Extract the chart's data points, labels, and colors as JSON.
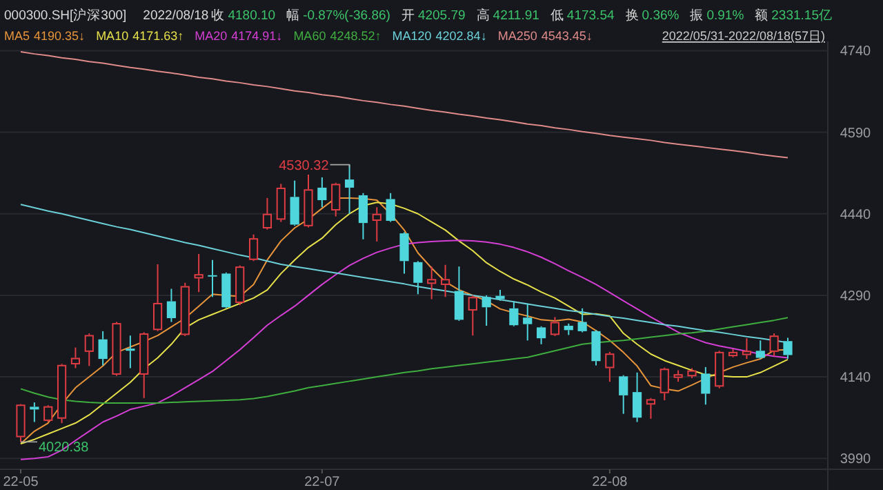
{
  "chart_data": {
    "type": "candlestick",
    "title": "000300.SH[沪深300]",
    "subtitle": "2022/08/18 收 4180.10 幅 -0.87%(-36.86) 开 4205.79 高 4211.91 低 4173.54 换 0.36% 振 0.91% 额 2331.15亿",
    "categories": [
      "22-05",
      null,
      null,
      null,
      null,
      null,
      null,
      null,
      null,
      null,
      null,
      null,
      null,
      null,
      null,
      null,
      null,
      null,
      null,
      null,
      null,
      null,
      "22-07",
      null,
      null,
      null,
      null,
      null,
      null,
      null,
      null,
      null,
      null,
      null,
      null,
      null,
      null,
      null,
      null,
      null,
      null,
      null,
      null,
      "22-08",
      null,
      null,
      null,
      null,
      null,
      null,
      null,
      null,
      null,
      null,
      null,
      null,
      null
    ],
    "ohlc": [
      [
        4029,
        4090,
        4020.38,
        4089
      ],
      [
        4085,
        4093,
        4057,
        4080
      ],
      [
        4059,
        4088,
        4057,
        4086
      ],
      [
        4063,
        4164,
        4055,
        4162
      ],
      [
        4163,
        4194,
        4156,
        4175
      ],
      [
        4186,
        4220,
        4160,
        4217
      ],
      [
        4209,
        4224,
        4161,
        4173
      ],
      [
        4144,
        4241,
        4142,
        4239
      ],
      [
        4192,
        4216,
        4156,
        4188
      ],
      [
        4144,
        4222,
        4101,
        4220
      ],
      [
        4226,
        4347,
        4224,
        4276
      ],
      [
        4279,
        4302,
        4241,
        4248
      ],
      [
        4217,
        4313,
        4215,
        4307
      ],
      [
        4321,
        4366,
        4296,
        4329
      ],
      [
        4327,
        4355,
        4287,
        4325
      ],
      [
        4330,
        4332,
        4266,
        4268
      ],
      [
        4276,
        4345,
        4272,
        4343
      ],
      [
        4355,
        4402,
        4353,
        4395
      ],
      [
        4413,
        4469,
        4411,
        4440
      ],
      [
        4429,
        4495,
        4425,
        4488
      ],
      [
        4471,
        4501,
        4418,
        4420
      ],
      [
        4417,
        4512,
        4415,
        4485
      ],
      [
        4488,
        4507,
        4452,
        4465
      ],
      [
        4446,
        4497,
        4435,
        4495
      ],
      [
        4503,
        4530.32,
        4440,
        4488
      ],
      [
        4474,
        4478,
        4393,
        4423
      ],
      [
        4427,
        4452,
        4389,
        4440
      ],
      [
        4467,
        4478,
        4425,
        4427
      ],
      [
        4404,
        4406,
        4330,
        4353
      ],
      [
        4351,
        4353,
        4292,
        4313
      ],
      [
        4311,
        4343,
        4283,
        4320
      ],
      [
        4309,
        4346,
        4287,
        4320
      ],
      [
        4298,
        4343,
        4243,
        4245
      ],
      [
        4262,
        4290,
        4216,
        4287
      ],
      [
        4287,
        4290,
        4234,
        4268
      ],
      [
        4289,
        4300,
        4280,
        4283
      ],
      [
        4266,
        4279,
        4233,
        4235
      ],
      [
        4249,
        4275,
        4207,
        4237
      ],
      [
        4231,
        4233,
        4200,
        4211
      ],
      [
        4217,
        4250,
        4215,
        4241
      ],
      [
        4234,
        4238,
        4217,
        4226
      ],
      [
        4241,
        4266,
        4222,
        4224
      ],
      [
        4224,
        4226,
        4161,
        4169
      ],
      [
        4156,
        4186,
        4131,
        4183
      ],
      [
        4141,
        4143,
        4072,
        4106
      ],
      [
        4112,
        4148,
        4057,
        4065
      ],
      [
        4089,
        4101,
        4063,
        4099
      ],
      [
        4110,
        4157,
        4097,
        4155
      ],
      [
        4138,
        4152,
        4131,
        4145
      ],
      [
        4141,
        4156,
        4138,
        4152
      ],
      [
        4146,
        4158,
        4089,
        4109
      ],
      [
        4122,
        4188,
        4119,
        4186
      ],
      [
        4178,
        4191,
        4176,
        4186
      ],
      [
        4180,
        4211,
        4173,
        4188
      ],
      [
        4188,
        4207,
        4173,
        4175
      ],
      [
        4186,
        4220,
        4178,
        4216
      ],
      [
        4205.79,
        4211.91,
        4173.54,
        4180.1
      ]
    ],
    "colors": [
      "#e03c44",
      "#4fd6dc",
      "#e03c44",
      "#e03c44",
      "#e03c44",
      "#e03c44",
      "#4fd6dc",
      "#e03c44",
      "#4fd6dc",
      "#e03c44",
      "#e03c44",
      "#4fd6dc",
      "#e03c44",
      "#e03c44",
      "#4fd6dc",
      "#4fd6dc",
      "#e03c44",
      "#e03c44",
      "#e03c44",
      "#e03c44",
      "#4fd6dc",
      "#e03c44",
      "#4fd6dc",
      "#e03c44",
      "#4fd6dc",
      "#4fd6dc",
      "#e03c44",
      "#4fd6dc",
      "#4fd6dc",
      "#4fd6dc",
      "#e03c44",
      "#e03c44",
      "#4fd6dc",
      "#e03c44",
      "#4fd6dc",
      "#4fd6dc",
      "#4fd6dc",
      "#4fd6dc",
      "#4fd6dc",
      "#e03c44",
      "#4fd6dc",
      "#4fd6dc",
      "#4fd6dc",
      "#e03c44",
      "#4fd6dc",
      "#4fd6dc",
      "#e03c44",
      "#e03c44",
      "#e03c44",
      "#e03c44",
      "#4fd6dc",
      "#e03c44",
      "#e03c44",
      "#e03c44",
      "#4fd6dc",
      "#e03c44",
      "#4fd6dc"
    ],
    "series": [
      {
        "name": "MA5",
        "type": "line",
        "color": "#e8943a",
        "values": [
          4017,
          4040,
          4055,
          4090,
          4120,
          4140,
          4160,
          4185,
          4195,
          4205,
          4216,
          4232,
          4248,
          4270,
          4292,
          4290,
          4288,
          4310,
          4355,
          4390,
          4414,
          4430,
          4450,
          4469,
          4469,
          4468,
          4465,
          4440,
          4410,
          4368,
          4340,
          4315,
          4300,
          4290,
          4280,
          4265,
          4258,
          4252,
          4245,
          4243,
          4246,
          4241,
          4225,
          4207,
          4185,
          4160,
          4124,
          4118,
          4114,
          4125,
          4137,
          4148,
          4158,
          4166,
          4173,
          4189,
          4190
        ]
      },
      {
        "name": "MA10",
        "type": "line",
        "color": "#e6e04a",
        "values": [
          4017,
          4025,
          4035,
          4045,
          4055,
          4070,
          4090,
          4110,
          4130,
          4155,
          4175,
          4200,
          4230,
          4245,
          4255,
          4265,
          4275,
          4285,
          4300,
          4330,
          4355,
          4378,
          4395,
          4420,
          4440,
          4455,
          4461,
          4458,
          4450,
          4440,
          4425,
          4410,
          4390,
          4372,
          4350,
          4334,
          4320,
          4309,
          4296,
          4285,
          4270,
          4255,
          4256,
          4252,
          4220,
          4200,
          4182,
          4170,
          4161,
          4152,
          4144,
          4142,
          4140,
          4140,
          4148,
          4160,
          4172
        ]
      },
      {
        "name": "MA20",
        "type": "line",
        "color": "#d63fd6",
        "values": [
          3988,
          3990,
          3993,
          4005,
          4023,
          4040,
          4057,
          4068,
          4080,
          4086,
          4092,
          4105,
          4120,
          4135,
          4150,
          4170,
          4190,
          4212,
          4235,
          4253,
          4270,
          4290,
          4310,
          4328,
          4345,
          4358,
          4369,
          4377,
          4384,
          4387,
          4389,
          4390,
          4391,
          4390,
          4388,
          4384,
          4378,
          4370,
          4360,
          4348,
          4335,
          4323,
          4310,
          4295,
          4280,
          4265,
          4250,
          4236,
          4222,
          4212,
          4203,
          4197,
          4192,
          4187,
          4182,
          4178,
          4175
        ]
      },
      {
        "name": "MA60",
        "type": "line",
        "color": "#3fae3f",
        "values": [
          4118,
          4110,
          4103,
          4098,
          4095,
          4093,
          4092,
          4092,
          4092,
          4092,
          4092,
          4093,
          4094,
          4095,
          4096,
          4097,
          4098,
          4100,
          4104,
          4109,
          4114,
          4120,
          4124,
          4128,
          4132,
          4136,
          4140,
          4144,
          4148,
          4151,
          4155,
          4158,
          4161,
          4164,
          4167,
          4170,
          4173,
          4176,
          4182,
          4188,
          4194,
          4200,
          4203,
          4205,
          4207,
          4210,
          4213,
          4216,
          4219,
          4221,
          4224,
          4228,
          4232,
          4236,
          4240,
          4244,
          4249
        ]
      },
      {
        "name": "MA120",
        "type": "line",
        "color": "#6cd0d8",
        "values": [
          4457,
          4451,
          4445,
          4440,
          4434,
          4428,
          4422,
          4416,
          4411,
          4405,
          4399,
          4393,
          4387,
          4382,
          4376,
          4370,
          4364,
          4359,
          4353,
          4347,
          4343,
          4339,
          4335,
          4331,
          4327,
          4323,
          4319,
          4315,
          4311,
          4306,
          4302,
          4298,
          4294,
          4290,
          4286,
          4282,
          4278,
          4274,
          4270,
          4266,
          4262,
          4259,
          4255,
          4251,
          4248,
          4244,
          4240,
          4236,
          4233,
          4229,
          4225,
          4222,
          4218,
          4214,
          4211,
          4207,
          4203
        ]
      },
      {
        "name": "MA250",
        "type": "line",
        "color": "#e08a8a",
        "values": [
          4738,
          4734,
          4731,
          4727,
          4724,
          4720,
          4717,
          4713,
          4709,
          4706,
          4702,
          4699,
          4695,
          4691,
          4688,
          4684,
          4681,
          4677,
          4674,
          4670,
          4666,
          4663,
          4659,
          4656,
          4652,
          4648,
          4645,
          4641,
          4638,
          4634,
          4630,
          4627,
          4623,
          4620,
          4616,
          4613,
          4609,
          4605,
          4602,
          4598,
          4595,
          4591,
          4588,
          4584,
          4581,
          4578,
          4575,
          4571,
          4568,
          4565,
          4562,
          4559,
          4556,
          4553,
          4549,
          4546,
          4543
        ]
      }
    ],
    "ylim": [
      3970,
      4757
    ],
    "yticks": [
      3990,
      4140,
      4290,
      4440,
      4590,
      4740
    ],
    "grid": "y",
    "legend": "top left",
    "annotations": [
      "4190.35↓",
      "4171.63↑",
      "4174.91↓",
      "4248.52↑",
      "4202.84↓",
      "4543.45↓",
      "2022/05/31-2022/08/18(57日)",
      "4530.32",
      "4020.38"
    ]
  }
}
